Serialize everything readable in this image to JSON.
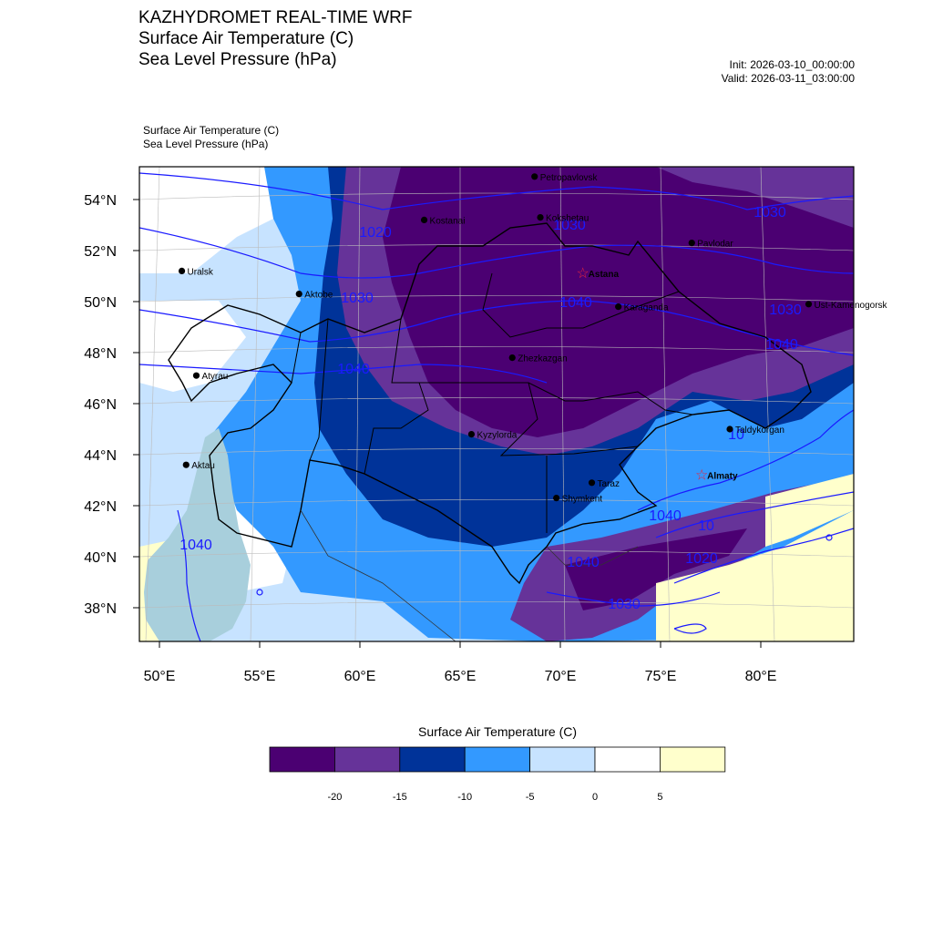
{
  "header": {
    "title_lines": [
      "KAZHYDROMET REAL-TIME WRF",
      "Surface Air Temperature  (C)",
      "Sea Level Pressure  (hPa)"
    ],
    "init": "Init: 2026-03-10_00:00:00",
    "valid": "Valid: 2026-03-11_03:00:00",
    "subtitle_lines": [
      "Surface Air Temperature   (C)",
      "Sea Level Pressure   (hPa)"
    ]
  },
  "map": {
    "lat_labels": [
      "54°N",
      "52°N",
      "50°N",
      "48°N",
      "46°N",
      "44°N",
      "42°N",
      "40°N",
      "38°N"
    ],
    "lon_labels": [
      "50°E",
      "55°E",
      "60°E",
      "65°E",
      "70°E",
      "75°E",
      "80°E"
    ],
    "cities": [
      {
        "name": "Petropavlovsk",
        "lon": 69.2,
        "lat": 54.9,
        "capital": false
      },
      {
        "name": "Kostanai",
        "lon": 63.6,
        "lat": 53.2,
        "capital": false
      },
      {
        "name": "Kokshetau",
        "lon": 69.4,
        "lat": 53.3,
        "capital": false
      },
      {
        "name": "Pavlodar",
        "lon": 76.9,
        "lat": 52.3,
        "capital": false
      },
      {
        "name": "Uralsk",
        "lon": 51.4,
        "lat": 51.2,
        "capital": false
      },
      {
        "name": "Astana",
        "lon": 71.4,
        "lat": 51.1,
        "capital": true
      },
      {
        "name": "Aktobe",
        "lon": 57.2,
        "lat": 50.3,
        "capital": false
      },
      {
        "name": "Ust-Kamenogorsk",
        "lon": 82.6,
        "lat": 49.9,
        "capital": false
      },
      {
        "name": "Karaganda",
        "lon": 73.1,
        "lat": 49.8,
        "capital": false
      },
      {
        "name": "Atyrau",
        "lon": 51.9,
        "lat": 47.1,
        "capital": false
      },
      {
        "name": "Zhezkazgan",
        "lon": 67.7,
        "lat": 47.8,
        "capital": false
      },
      {
        "name": "Taldykorgan",
        "lon": 78.4,
        "lat": 45.0,
        "capital": false
      },
      {
        "name": "Aktau",
        "lon": 51.2,
        "lat": 43.6,
        "capital": false
      },
      {
        "name": "Kyzylorda",
        "lon": 65.5,
        "lat": 44.8,
        "capital": false
      },
      {
        "name": "Almaty",
        "lon": 76.9,
        "lat": 43.2,
        "capital": true
      },
      {
        "name": "Taraz",
        "lon": 71.4,
        "lat": 42.9,
        "capital": false
      },
      {
        "name": "Shymkent",
        "lon": 69.6,
        "lat": 42.3,
        "capital": false
      }
    ],
    "isobar_labels": [
      {
        "text": "1020"
      },
      {
        "text": "1030"
      },
      {
        "text": "1030"
      },
      {
        "text": "1040"
      },
      {
        "text": "1040"
      },
      {
        "text": "1040"
      },
      {
        "text": "1030"
      },
      {
        "text": "1030"
      },
      {
        "text": "1040"
      },
      {
        "text": "10"
      },
      {
        "text": "1040"
      },
      {
        "text": "10"
      },
      {
        "text": "1020"
      },
      {
        "text": "1030"
      },
      {
        "text": "1040"
      }
    ]
  },
  "legend": {
    "title": "Surface Air Temperature (C)",
    "ticks": [
      "-20",
      "-15",
      "-10",
      "-5",
      "0",
      "5"
    ],
    "colors": [
      "#4b0072",
      "#663399",
      "#003399",
      "#3399ff",
      "#c7e3ff",
      "#ffffff",
      "#ffffcc"
    ]
  },
  "colors": {
    "t_lt_m20": "#4b0072",
    "t_m20_m15": "#663399",
    "t_m15_m10": "#003399",
    "t_m10_m5": "#3399ff",
    "t_m5_0": "#c7e3ff",
    "t_0_5": "#ffffff",
    "t_gt_5": "#ffffcc",
    "isobar": "#1a1aff",
    "capital_star": "#e8243c",
    "caspian": "#a8cfdc"
  }
}
